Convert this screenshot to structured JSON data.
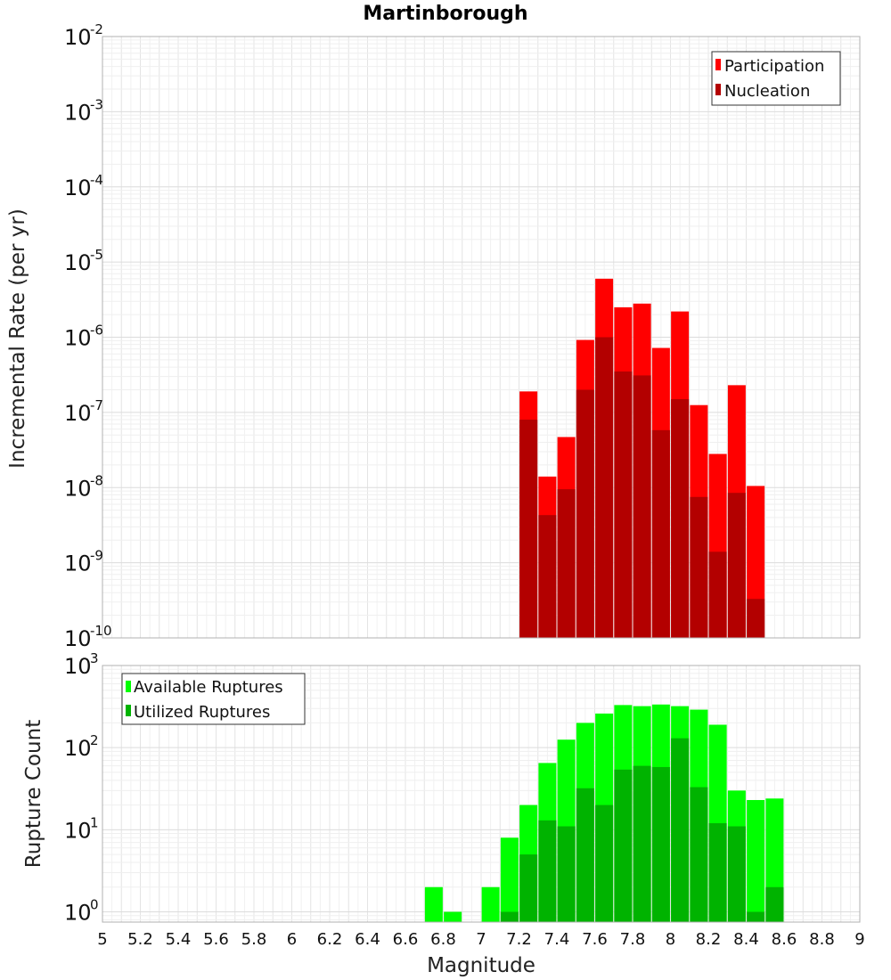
{
  "chart_data": [
    {
      "type": "bar",
      "title": "Martinborough",
      "ylabel": "Incremental Rate (per yr)",
      "yscale": "log",
      "ylim": [
        1e-10,
        0.01
      ],
      "xlim": [
        5,
        9
      ],
      "grid": true,
      "legend_position": "top-right",
      "y_tick_labels": [
        {
          "base": "10",
          "exp": "-10"
        },
        {
          "base": "10",
          "exp": "-9"
        },
        {
          "base": "10",
          "exp": "-8"
        },
        {
          "base": "10",
          "exp": "-7"
        },
        {
          "base": "10",
          "exp": "-6"
        },
        {
          "base": "10",
          "exp": "-5"
        },
        {
          "base": "10",
          "exp": "-4"
        },
        {
          "base": "10",
          "exp": "-3"
        },
        {
          "base": "10",
          "exp": "-2"
        }
      ],
      "x": [
        7.25,
        7.35,
        7.45,
        7.55,
        7.65,
        7.75,
        7.85,
        7.95,
        8.05,
        8.15,
        8.25,
        8.35,
        8.45
      ],
      "series": [
        {
          "name": "Participation",
          "color": "#ff0000",
          "values": [
            1.9e-07,
            1.4e-08,
            4.7e-08,
            9.2e-07,
            6e-06,
            2.5e-06,
            2.8e-06,
            7.2e-07,
            2.2e-06,
            1.25e-07,
            2.8e-08,
            2.3e-07,
            1.05e-08
          ]
        },
        {
          "name": "Nucleation",
          "color": "#b30000",
          "values": [
            8e-08,
            4.3e-09,
            9.5e-09,
            2e-07,
            1e-06,
            3.5e-07,
            3.1e-07,
            5.8e-08,
            1.5e-07,
            7.5e-09,
            1.4e-09,
            8.5e-09,
            3.3e-10
          ]
        }
      ]
    },
    {
      "type": "bar",
      "xlabel": "Magnitude",
      "ylabel": "Rupture Count",
      "yscale": "log",
      "ylim": [
        0.75,
        1000
      ],
      "xlim": [
        5,
        9
      ],
      "grid": true,
      "legend_position": "top-left",
      "y_tick_labels": [
        {
          "value": 1,
          "base": "10",
          "exp": "0"
        },
        {
          "value": 10,
          "base": "10",
          "exp": "1"
        },
        {
          "value": 100,
          "base": "10",
          "exp": "2"
        },
        {
          "value": 1000,
          "base": "10",
          "exp": "3"
        }
      ],
      "x_tick_labels": [
        "5",
        "5.2",
        "5.4",
        "5.6",
        "5.8",
        "6",
        "6.2",
        "6.4",
        "6.6",
        "6.8",
        "7",
        "7.2",
        "7.4",
        "7.6",
        "7.8",
        "8",
        "8.2",
        "8.4",
        "8.6",
        "8.8",
        "9"
      ],
      "x": [
        6.75,
        6.85,
        7.05,
        7.15,
        7.25,
        7.35,
        7.45,
        7.55,
        7.65,
        7.75,
        7.85,
        7.95,
        8.05,
        8.15,
        8.25,
        8.35,
        8.45,
        8.55
      ],
      "series": [
        {
          "name": "Available Ruptures",
          "color": "#00ff00",
          "values": [
            2,
            1,
            2,
            8,
            20,
            65,
            125,
            200,
            260,
            330,
            320,
            335,
            320,
            290,
            190,
            30,
            23,
            24
          ]
        },
        {
          "name": "Utilized Ruptures",
          "color": "#00b300",
          "values": [
            0,
            0,
            0,
            1,
            5,
            13,
            11,
            32,
            20,
            54,
            60,
            58,
            130,
            33,
            12,
            11,
            1,
            2
          ]
        }
      ]
    }
  ]
}
